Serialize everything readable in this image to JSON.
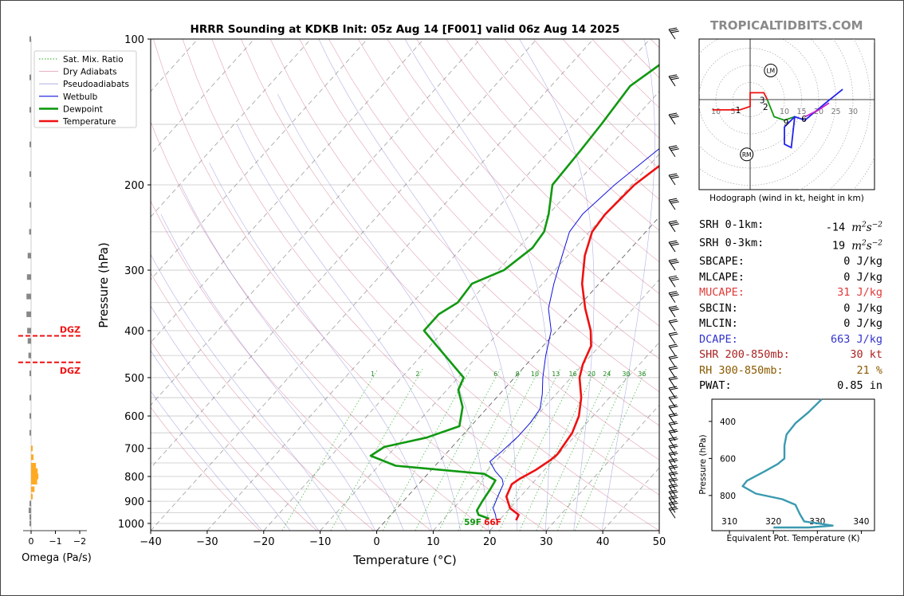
{
  "title": "HRRR Sounding at KDKB Init: 05z Aug 14 [F001] valid 06z Aug 14 2025",
  "brand": "TROPICALTIDBITS.COM",
  "main_chart": {
    "type": "line",
    "xlabel": "Temperature (°C)",
    "ylabel": "Pressure (hPa)",
    "xlim": [
      -40,
      50
    ],
    "ylim": [
      1035,
      100
    ],
    "y_scale": "log",
    "xticks": [
      "−40",
      "−30",
      "−20",
      "−10",
      "0",
      "10",
      "20",
      "30",
      "40",
      "50"
    ],
    "yticks": [
      "100",
      "200",
      "300",
      "400",
      "500",
      "600",
      "700",
      "800",
      "900",
      "1000"
    ],
    "legend_position": "top-left",
    "legend": [
      "Sat. Mix. Ratio",
      "Dry Adiabats",
      "Pseudoadiabats",
      "Wetbulb",
      "Dewpoint",
      "Temperature"
    ],
    "mixing_ratio_labels": [
      "1",
      "2",
      "6",
      "8",
      "10",
      "13",
      "16",
      "20",
      "24",
      "30",
      "36"
    ],
    "surface_dewpoint_label": "59F",
    "surface_temp_label": "66F",
    "series": [
      {
        "name": "Temperature",
        "color": "#ee1111",
        "points": [
          [
            23,
            985
          ],
          [
            22.6,
            960
          ],
          [
            20,
            930
          ],
          [
            17.5,
            880
          ],
          [
            16.5,
            830
          ],
          [
            17,
            810
          ],
          [
            18.5,
            775
          ],
          [
            19.5,
            740
          ],
          [
            19.8,
            720
          ],
          [
            19,
            650
          ],
          [
            17.5,
            600
          ],
          [
            15,
            550
          ],
          [
            11.5,
            500
          ],
          [
            10,
            470
          ],
          [
            8.5,
            430
          ],
          [
            6,
            400
          ],
          [
            1.5,
            360
          ],
          [
            -3,
            320
          ],
          [
            -7,
            280
          ],
          [
            -9.5,
            250
          ],
          [
            -10,
            230
          ],
          [
            -9.5,
            200
          ],
          [
            -7,
            170
          ],
          [
            -6,
            150
          ],
          [
            -3.5,
            125
          ],
          [
            -2,
            112
          ],
          [
            0.5,
            100
          ]
        ]
      },
      {
        "name": "Dewpoint",
        "color": "#119911",
        "points": [
          [
            18,
            978
          ],
          [
            15.5,
            960
          ],
          [
            14.5,
            940
          ],
          [
            14,
            900
          ],
          [
            13.5,
            850
          ],
          [
            13,
            815
          ],
          [
            10,
            790
          ],
          [
            -7,
            760
          ],
          [
            -13,
            725
          ],
          [
            -12,
            695
          ],
          [
            -6,
            665
          ],
          [
            -2,
            630
          ],
          [
            -4.5,
            575
          ],
          [
            -8,
            530
          ],
          [
            -9,
            500
          ],
          [
            -23.5,
            400
          ],
          [
            -23.5,
            370
          ],
          [
            -22,
            350
          ],
          [
            -22.5,
            320
          ],
          [
            -19,
            300
          ],
          [
            -17.5,
            270
          ],
          [
            -18,
            250
          ],
          [
            -20,
            230
          ],
          [
            -24,
            200
          ],
          [
            -24.5,
            170
          ],
          [
            -25,
            150
          ],
          [
            -26,
            125
          ],
          [
            -24,
            112
          ],
          [
            -23,
            100
          ]
        ]
      },
      {
        "name": "Wetbulb",
        "color": "#1111dd",
        "points": [
          [
            19.5,
            985
          ],
          [
            18.5,
            960
          ],
          [
            17,
            930
          ],
          [
            16,
            880
          ],
          [
            15,
            830
          ],
          [
            14,
            810
          ],
          [
            11.5,
            780
          ],
          [
            9,
            745
          ],
          [
            9.5,
            710
          ],
          [
            10,
            660
          ],
          [
            10,
            620
          ],
          [
            9.5,
            580
          ],
          [
            7.5,
            540
          ],
          [
            5,
            500
          ],
          [
            2,
            450
          ],
          [
            -1,
            400
          ],
          [
            -5,
            360
          ],
          [
            -8,
            320
          ],
          [
            -11,
            280
          ],
          [
            -13.5,
            250
          ],
          [
            -14,
            230
          ],
          [
            -13,
            200
          ],
          [
            -11,
            170
          ],
          [
            -9,
            150
          ],
          [
            -7.5,
            125
          ],
          [
            -6,
            112
          ],
          [
            -4,
            100
          ]
        ]
      }
    ]
  },
  "hodograph": {
    "title": "Hodograph (wind in kt, height in km)",
    "ring_labels": [
      "10",
      "15",
      "20",
      "25",
      "30"
    ],
    "left_labels": [
      "10",
      "5"
    ],
    "height_labels": [
      "1",
      "2",
      "3",
      "6",
      "9"
    ],
    "markers": [
      "LM",
      "RM"
    ]
  },
  "params": [
    {
      "label": "SRH 0-1km:",
      "value": "-14",
      "unit": "m2s-2",
      "color": "#000000"
    },
    {
      "label": "SRH 0-3km:",
      "value": "19",
      "unit": "m2s-2",
      "color": "#000000"
    },
    {
      "label": "SBCAPE:",
      "value": "0 J/kg",
      "color": "#000000"
    },
    {
      "label": "MLCAPE:",
      "value": "0 J/kg",
      "color": "#000000"
    },
    {
      "label": "MUCAPE:",
      "value": "31 J/kg",
      "color": "#e03a3a"
    },
    {
      "label": "SBCIN:",
      "value": "0 J/kg",
      "color": "#000000"
    },
    {
      "label": "MLCIN:",
      "value": "0 J/kg",
      "color": "#000000"
    },
    {
      "label": "DCAPE:",
      "value": "663 J/kg",
      "color": "#3333cc"
    },
    {
      "label": "SHR 200-850mb:",
      "value": "30 kt",
      "color": "#aa2222"
    },
    {
      "label": "RH 300-850mb:",
      "value": "21 %",
      "color": "#8a5a00"
    },
    {
      "label": "PWAT:",
      "value": "0.85 in",
      "color": "#000000"
    }
  ],
  "omega_chart": {
    "type": "bar",
    "xlabel": "Omega (Pa/s)",
    "xticks": [
      "0",
      "−1",
      "−2"
    ],
    "dgz_label": "DGZ",
    "dgz_bounds_hpa": [
      410,
      465
    ],
    "bars": [
      [
        100,
        0
      ],
      [
        120,
        0
      ],
      [
        140,
        0
      ],
      [
        165,
        0.02
      ],
      [
        190,
        0.03
      ],
      [
        220,
        0.05
      ],
      [
        250,
        0.08
      ],
      [
        280,
        0.14
      ],
      [
        310,
        0.17
      ],
      [
        340,
        0.19
      ],
      [
        370,
        0.19
      ],
      [
        400,
        0.16
      ],
      [
        420,
        0.14
      ],
      [
        450,
        0.11
      ],
      [
        490,
        0.03
      ],
      [
        550,
        0
      ],
      [
        600,
        0
      ],
      [
        650,
        0
      ],
      [
        700,
        -0.06
      ],
      [
        730,
        -0.1
      ],
      [
        760,
        -0.2
      ],
      [
        780,
        -0.27
      ],
      [
        800,
        -0.3
      ],
      [
        820,
        -0.25
      ],
      [
        850,
        -0.14
      ],
      [
        880,
        -0.04
      ],
      [
        910,
        0.05
      ],
      [
        940,
        0.1
      ],
      [
        970,
        0.06
      ],
      [
        1000,
        0.01
      ]
    ]
  },
  "theta_e_chart": {
    "type": "line",
    "xlabel": "Equivalent Pot. Temperature (K)",
    "ylabel": "Pressure (hPa)",
    "xlim": [
      306,
      343
    ],
    "ylim": [
      990,
      280
    ],
    "xticks": [
      "310",
      "320",
      "330",
      "340"
    ],
    "yticks": [
      "400",
      "600",
      "800"
    ],
    "color": "#3a9ab0",
    "points": [
      [
        331,
        280
      ],
      [
        328,
        350
      ],
      [
        325,
        410
      ],
      [
        323,
        470
      ],
      [
        322.5,
        530
      ],
      [
        322.5,
        580
      ],
      [
        322.5,
        600
      ],
      [
        321,
        630
      ],
      [
        318,
        670
      ],
      [
        314,
        720
      ],
      [
        313,
        750
      ],
      [
        316,
        790
      ],
      [
        322,
        820
      ],
      [
        325,
        850
      ],
      [
        326,
        900
      ],
      [
        327,
        940
      ],
      [
        330,
        950
      ],
      [
        333.5,
        963
      ],
      [
        328,
        973
      ],
      [
        320,
        973
      ]
    ]
  }
}
